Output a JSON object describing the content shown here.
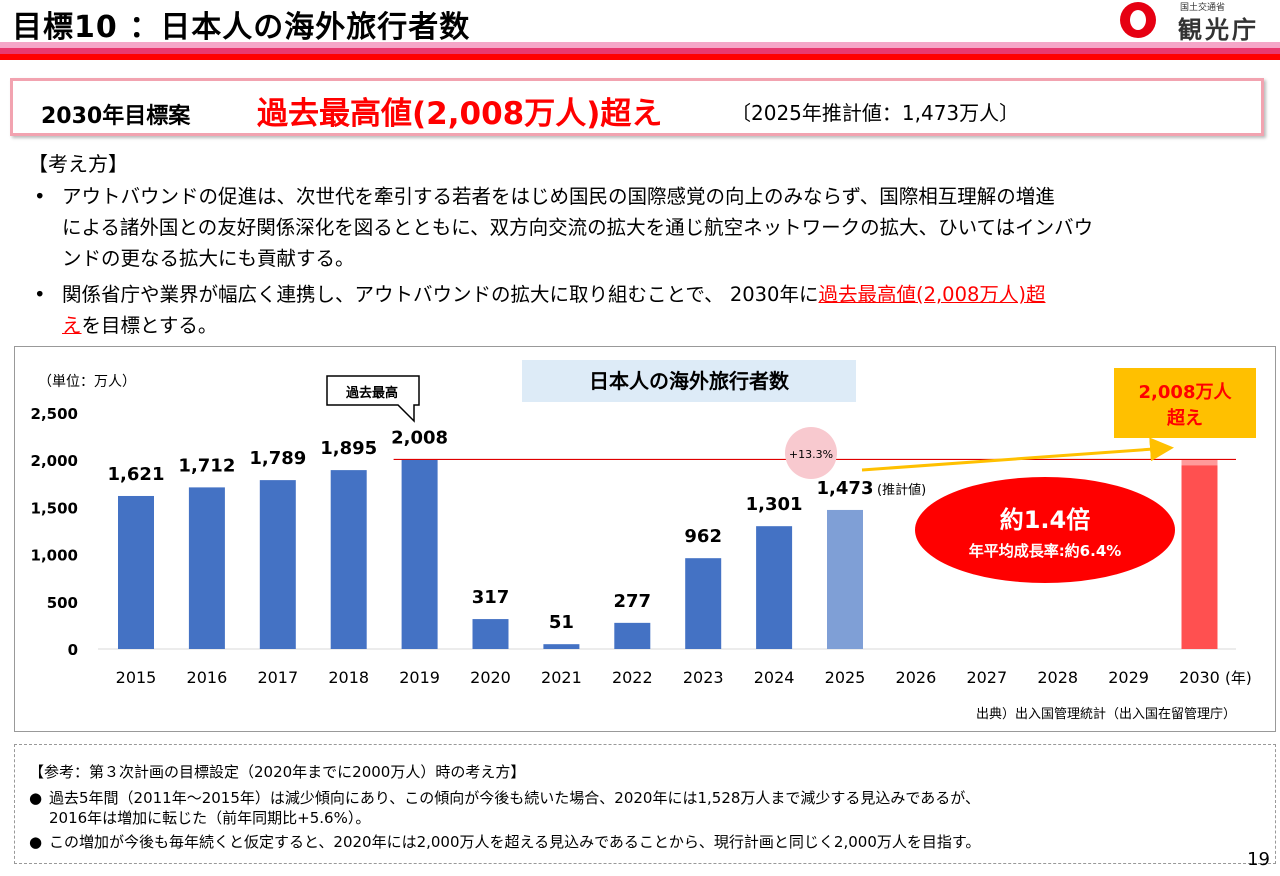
{
  "header": {
    "title": "目標10 ：日本人の海外旅行者数",
    "logo_sub": "国土交通省",
    "logo_name": "観光庁"
  },
  "target": {
    "plan_label": "2030年目標案",
    "headline": "過去最高値(2,008万人)超え",
    "estimate": "〔2025年推計値：1,473万人〕"
  },
  "approach": {
    "heading": "【考え方】",
    "bullet1_lines": [
      "アウトバウンドの促進は、次世代を牽引する若者をはじめ国民の国際感覚の向上のみならず、国際相互理解の増進",
      "による諸外国との友好関係深化を図るとともに、双方向交流の拡大を通じ航空ネットワークの拡大、ひいてはインバウ",
      "ンドの更なる拡大にも貢献する。"
    ],
    "bullet2_line1_pre": "関係省庁や業界が幅広く連携し、アウトバウンドの拡大に取り組むことで、 2030年に",
    "bullet2_line1_red": "過去最高値(2,008万人)超",
    "bullet2_line2_red": "え",
    "bullet2_line2_post": "を目標とする。"
  },
  "chart_data": {
    "type": "bar",
    "title": "日本人の海外旅行者数",
    "unit_label": "（単位：万人）",
    "xlabel_suffix": "(年)",
    "ylim": [
      0,
      2500
    ],
    "yticks": [
      0,
      500,
      1000,
      1500,
      2000,
      2500
    ],
    "ytick_labels": [
      "0",
      "500",
      "1,000",
      "1,500",
      "2,000",
      "2,500"
    ],
    "categories": [
      "2015",
      "2016",
      "2017",
      "2018",
      "2019",
      "2020",
      "2021",
      "2022",
      "2023",
      "2024",
      "2025",
      "2026",
      "2027",
      "2028",
      "2029",
      "2030"
    ],
    "values": [
      1621,
      1712,
      1789,
      1895,
      2008,
      317,
      51,
      277,
      962,
      1301,
      1473,
      null,
      null,
      null,
      null,
      2008
    ],
    "value_labels": [
      "1,621",
      "1,712",
      "1,789",
      "1,895",
      "2,008",
      "317",
      "51",
      "277",
      "962",
      "1,301",
      "1,473",
      "",
      "",
      "",
      "",
      ""
    ],
    "estimate_note": "(推計値)",
    "reference_line_value": 2008,
    "peak_callout": "過去最高",
    "growth_bubble": "+13.3%",
    "target_box_line1": "2,008万人",
    "target_box_line2": "超え",
    "ellipse_line1": "約1.4倍",
    "ellipse_line2": "年平均成長率:約6.4%",
    "source": "出典）出入国管理統計（出入国在留管理庁）",
    "colors": {
      "actual": "#4472c4",
      "estimate": "#7f9fd6",
      "target": "#ff5050",
      "reference_line": "#e00000",
      "arrow": "#ffc000",
      "title_bg": "#ddebf7",
      "ellipse": "#ff0000",
      "target_box_bg": "#ffc000",
      "target_box_text": "#ff0000",
      "bubble": "#f8c9cf"
    }
  },
  "reference": {
    "title": "【参考：第３次計画の目標設定（2020年までに2000万人）時の考え方】",
    "bullet1_line1": "過去5年間（2011年～2015年）は減少傾向にあり、この傾向が今後も続いた場合、2020年には1,528万人まで減少する見込みであるが、",
    "bullet1_line2": "2016年は増加に転じた（前年同期比+5.6%）。",
    "bullet2": "この増加が今後も毎年続くと仮定すると、2020年には2,000万人を超える見込みであることから、現行計画と同じく2,000万人を目指す。",
    "bullet_mark": "●"
  },
  "page_number": "19",
  "bullet_mark_main": "•"
}
